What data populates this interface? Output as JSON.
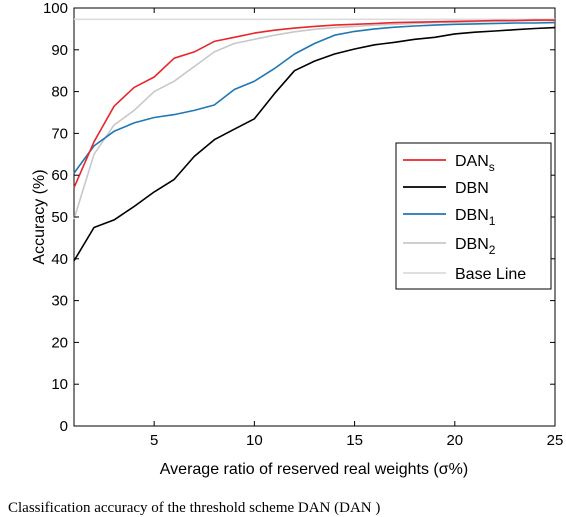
{
  "caption": "Classification accuracy of the threshold scheme DAN (DAN )",
  "chart_data": {
    "type": "line",
    "xlabel": "Average ratio of reserved real weights (σ%)",
    "ylabel": "Accuracy (%)",
    "xlim": [
      1,
      25
    ],
    "ylim": [
      0,
      100
    ],
    "xticks": [
      5,
      10,
      15,
      20,
      25
    ],
    "yticks": [
      0,
      10,
      20,
      30,
      40,
      50,
      60,
      70,
      80,
      90,
      100
    ],
    "grid": false,
    "legend_position": "right-middle",
    "series": [
      {
        "name": "DAN",
        "subscript": "s",
        "color": "#e8262b",
        "x": [
          1,
          2,
          3,
          4,
          5,
          6,
          7,
          8,
          9,
          10,
          11,
          12,
          13,
          14,
          15,
          16,
          17,
          18,
          19,
          20,
          21,
          22,
          23,
          24,
          25
        ],
        "y": [
          57,
          68,
          76.5,
          81,
          83.5,
          88,
          89.5,
          92,
          93,
          94,
          94.7,
          95.2,
          95.6,
          95.9,
          96.1,
          96.3,
          96.5,
          96.6,
          96.7,
          96.8,
          96.9,
          97,
          97,
          97.1,
          97.1
        ]
      },
      {
        "name": "DBN",
        "subscript": "",
        "color": "#000000",
        "x": [
          1,
          2,
          3,
          4,
          5,
          6,
          7,
          8,
          9,
          10,
          11,
          12,
          13,
          14,
          15,
          16,
          17,
          18,
          19,
          20,
          21,
          22,
          23,
          24,
          25
        ],
        "y": [
          39.5,
          47.5,
          49.3,
          52.5,
          56,
          59,
          64.5,
          68.5,
          71,
          73.5,
          79.5,
          85,
          87.3,
          89,
          90.2,
          91.2,
          91.8,
          92.5,
          93,
          93.8,
          94.2,
          94.5,
          94.8,
          95.1,
          95.3
        ]
      },
      {
        "name": "DBN",
        "subscript": "1",
        "color": "#1f77b4",
        "x": [
          1,
          2,
          3,
          4,
          5,
          6,
          7,
          8,
          9,
          10,
          11,
          12,
          13,
          14,
          15,
          16,
          17,
          18,
          19,
          20,
          21,
          22,
          23,
          24,
          25
        ],
        "y": [
          60.5,
          67,
          70.5,
          72.5,
          73.8,
          74.5,
          75.5,
          76.8,
          80.5,
          82.5,
          85.5,
          89,
          91.5,
          93.5,
          94.4,
          95,
          95.4,
          95.7,
          95.9,
          96.1,
          96.2,
          96.3,
          96.4,
          96.4,
          96.5
        ]
      },
      {
        "name": "DBN",
        "subscript": "2",
        "color": "#c8c8c8",
        "x": [
          1,
          2,
          3,
          4,
          5,
          6,
          7,
          8,
          9,
          10,
          11,
          12,
          13,
          14,
          15,
          16,
          17,
          18,
          19,
          20,
          21,
          22,
          23,
          24,
          25
        ],
        "y": [
          49.5,
          65,
          72,
          75.5,
          80,
          82.5,
          86,
          89.5,
          91.5,
          92.5,
          93.5,
          94.3,
          94.9,
          95.3,
          95.6,
          95.9,
          96.1,
          96.3,
          96.5,
          96.6,
          96.7,
          96.8,
          96.9,
          97,
          97
        ]
      },
      {
        "name": "Base Line",
        "subscript": "",
        "color": "#dcdcdc",
        "x": [
          1,
          25
        ],
        "y": [
          97.3,
          97.3
        ]
      }
    ]
  }
}
